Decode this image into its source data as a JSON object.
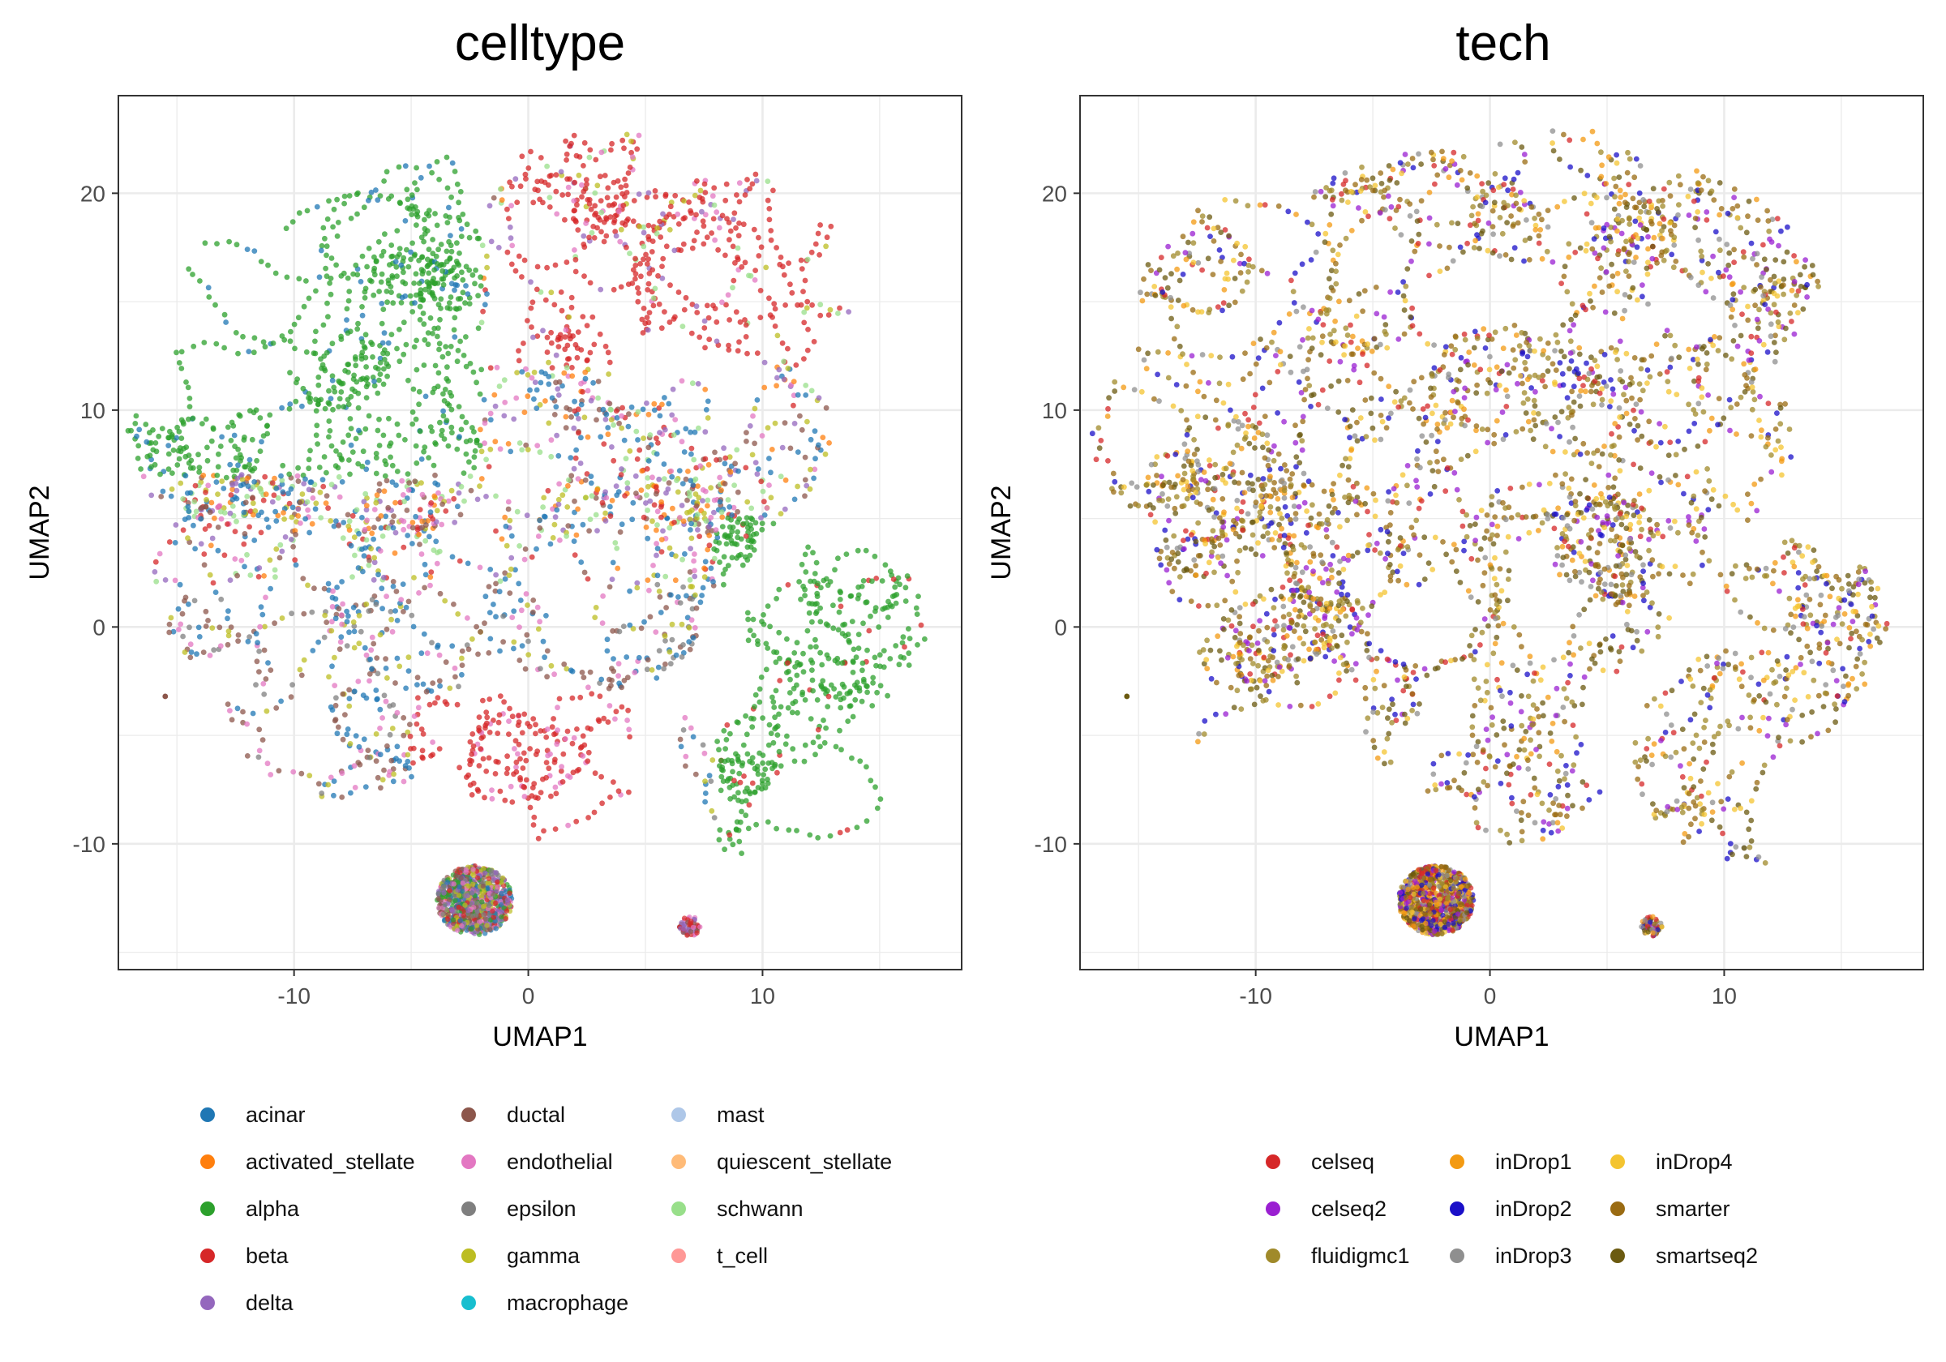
{
  "chart_data": [
    {
      "type": "scatter",
      "title": "celltype",
      "xlabel": "UMAP1",
      "ylabel": "UMAP2",
      "xlim": [
        -17.5,
        18.5
      ],
      "ylim": [
        -15.8,
        24.5
      ],
      "xticks": [
        -10,
        0,
        10
      ],
      "yticks": [
        -10,
        0,
        10,
        20
      ],
      "grid": true,
      "legend_position": "bottom",
      "categories": [
        {
          "name": "acinar",
          "color": "#1f77b4"
        },
        {
          "name": "activated_stellate",
          "color": "#ff7f0e"
        },
        {
          "name": "alpha",
          "color": "#2ca02c"
        },
        {
          "name": "beta",
          "color": "#d62728"
        },
        {
          "name": "delta",
          "color": "#9467bd"
        },
        {
          "name": "ductal",
          "color": "#8c564b"
        },
        {
          "name": "endothelial",
          "color": "#e377c2"
        },
        {
          "name": "epsilon",
          "color": "#7f7f7f"
        },
        {
          "name": "gamma",
          "color": "#bcbd22"
        },
        {
          "name": "macrophage",
          "color": "#17becf"
        },
        {
          "name": "mast",
          "color": "#aec7e8"
        },
        {
          "name": "quiescent_stellate",
          "color": "#ffbb78"
        },
        {
          "name": "schwann",
          "color": "#98df8a"
        },
        {
          "name": "t_cell",
          "color": "#ff9896"
        }
      ]
    },
    {
      "type": "scatter",
      "title": "tech",
      "xlabel": "UMAP1",
      "ylabel": "UMAP2",
      "xlim": [
        -17.5,
        18.5
      ],
      "ylim": [
        -15.8,
        24.5
      ],
      "xticks": [
        -10,
        0,
        10
      ],
      "yticks": [
        -10,
        0,
        10,
        20
      ],
      "grid": true,
      "legend_position": "bottom",
      "categories": [
        {
          "name": "celseq",
          "color": "#d62728"
        },
        {
          "name": "celseq2",
          "color": "#9a1fd1"
        },
        {
          "name": "fluidigmc1",
          "color": "#a08a2a"
        },
        {
          "name": "inDrop1",
          "color": "#f39a12"
        },
        {
          "name": "inDrop2",
          "color": "#1a0fc8"
        },
        {
          "name": "inDrop3",
          "color": "#8f8f8f"
        },
        {
          "name": "inDrop4",
          "color": "#f4c430"
        },
        {
          "name": "smarter",
          "color": "#9a6b12"
        },
        {
          "name": "smartseq2",
          "color": "#6b5a10"
        }
      ]
    }
  ]
}
